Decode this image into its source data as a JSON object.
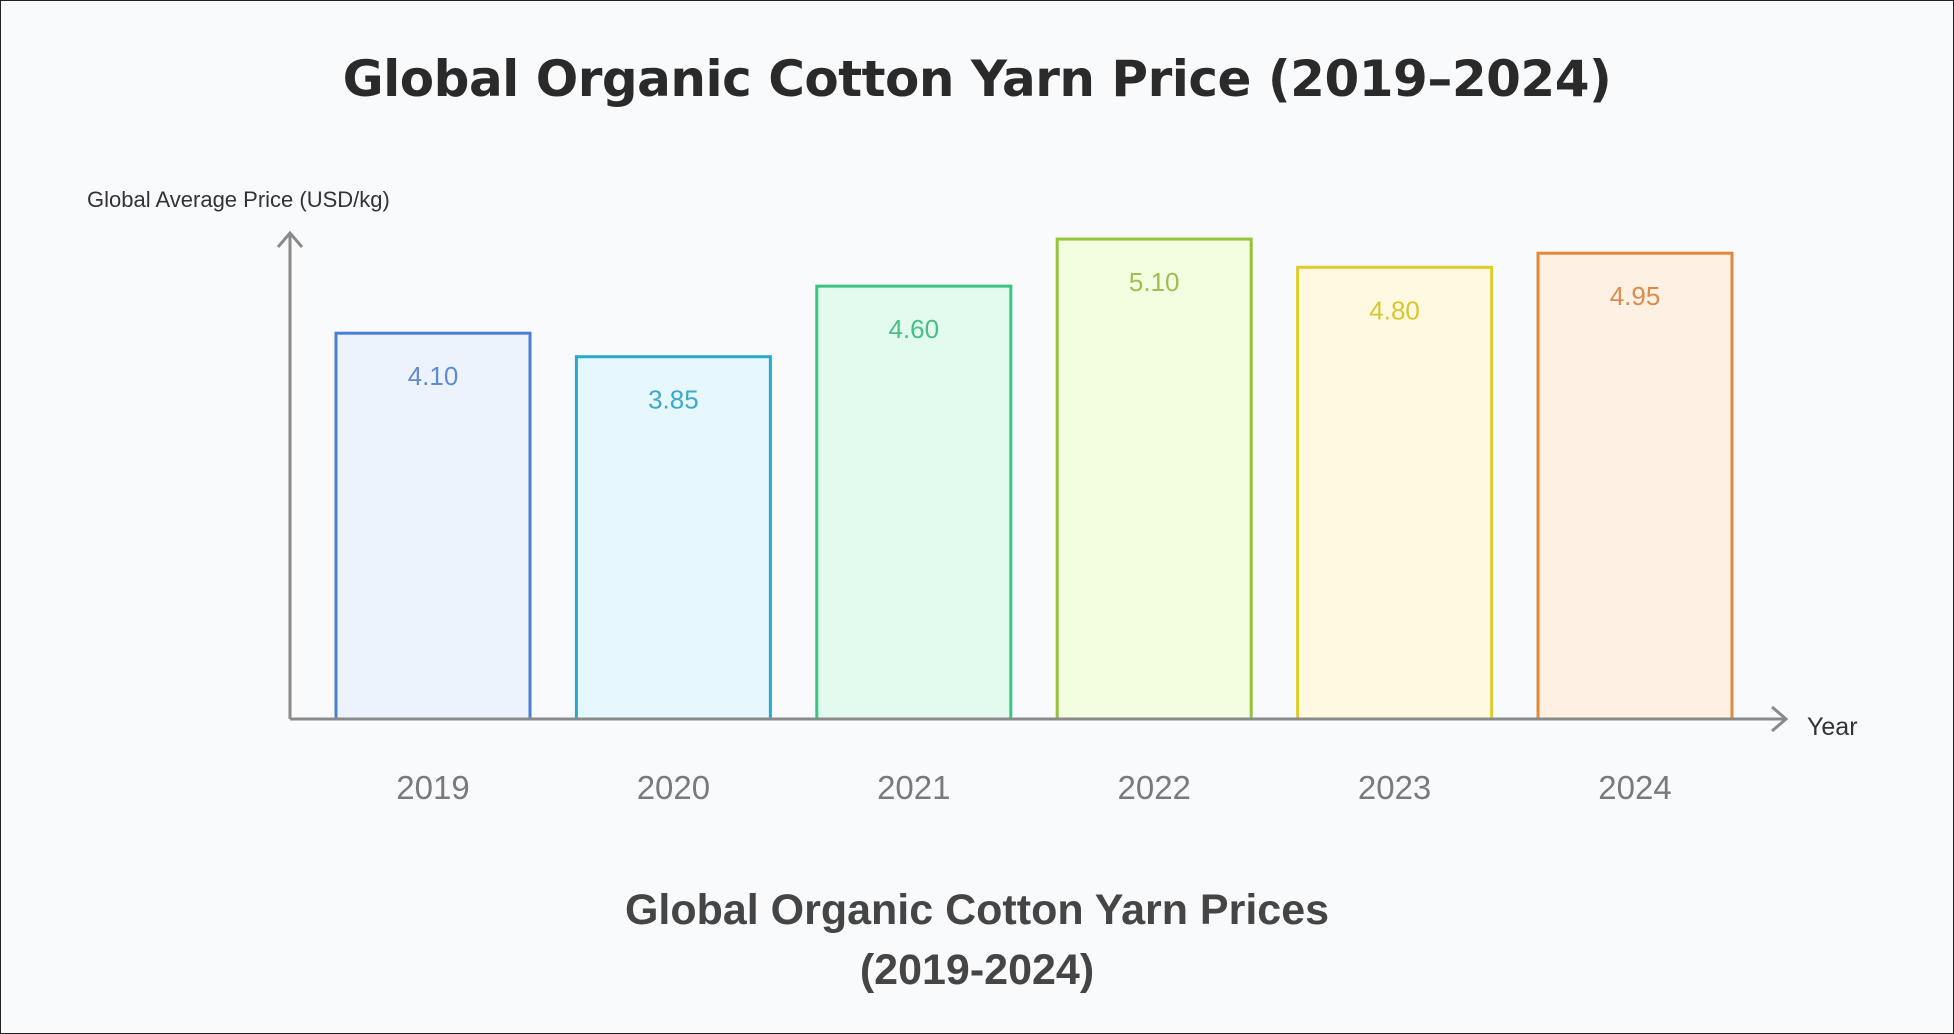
{
  "chart_data": {
    "type": "bar",
    "title": "Global Organic Cotton Yarn Price (2019–2024)",
    "caption_line1": "Global Organic Cotton Yarn Prices",
    "caption_line2": "(2019-2024)",
    "xlabel": "Year",
    "ylabel": "Global Average Price (USD/kg)",
    "categories": [
      "2019",
      "2020",
      "2021",
      "2022",
      "2023",
      "2024"
    ],
    "values": [
      4.1,
      3.85,
      4.6,
      5.1,
      4.8,
      4.95
    ],
    "value_labels": [
      "4.10",
      "3.85",
      "4.60",
      "5.10",
      "4.80",
      "4.95"
    ],
    "ylim": [
      0,
      5.2
    ],
    "grid": false,
    "colors": {
      "strokes": [
        "#4a7fd8",
        "#29a8d0",
        "#3cc382",
        "#94c43c",
        "#e0cc2a",
        "#e08a3c"
      ],
      "fills": [
        "#edf3fd",
        "#e6f8fd",
        "#e3fbee",
        "#f3fde0",
        "#fef9e0",
        "#fef0e3"
      ],
      "labels": [
        "#5f8ad6",
        "#3aa9cc",
        "#48bf85",
        "#9dbf52",
        "#d8c830",
        "#dc8c48"
      ],
      "axis": "#8a8a8a"
    }
  }
}
